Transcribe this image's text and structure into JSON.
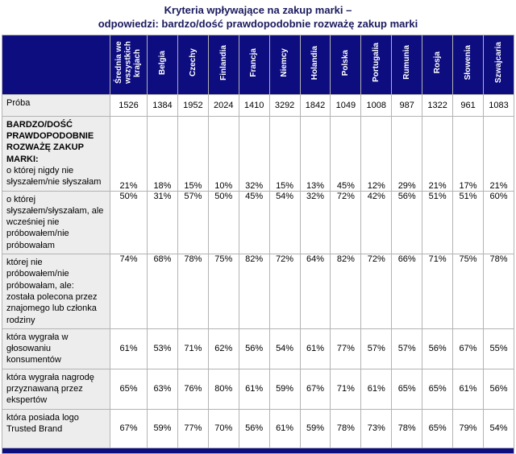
{
  "title": {
    "line1": "Kryteria wpływające na zakup marki –",
    "line2": "odpowiedzi: bardzo/dość prawdopodobnie rozważę zakup marki"
  },
  "colors": {
    "header_bg": "#0d0d80",
    "header_text": "#ffffff",
    "title_text": "#1a1a5e",
    "label_column_bg": "#ededed",
    "grid_line": "#b3b3b3"
  },
  "chart_data": {
    "type": "table",
    "title": "Kryteria wpływające na zakup marki – odpowiedzi: bardzo/dość prawdopodobnie rozważę zakup marki",
    "columns": [
      "Średnia we wszystkich krajach",
      "Belgia",
      "Czechy",
      "Finlandia",
      "Francja",
      "Niemcy",
      "Holandia",
      "Polska",
      "Portugalia",
      "Rumunia",
      "Rosja",
      "Słowenia",
      "Szwajcaria"
    ],
    "section_header": "BARDZO/DOŚĆ PRAWDOPODOBNIE ROZWAŻĘ ZAKUP MARKI:",
    "rows": [
      {
        "label": "Próba",
        "values": [
          1526,
          1384,
          1952,
          2024,
          1410,
          3292,
          1842,
          1049,
          1008,
          987,
          1322,
          961,
          1083
        ]
      },
      {
        "label": "o której nigdy nie słyszałem/nie słyszałam",
        "unit": "%",
        "section": true,
        "values": [
          21,
          18,
          15,
          10,
          32,
          15,
          13,
          45,
          12,
          29,
          21,
          17,
          21
        ]
      },
      {
        "label": "o której słyszałem/słyszałam, ale wcześniej nie próbowałem/nie próbowałam",
        "unit": "%",
        "values": [
          50,
          31,
          57,
          50,
          45,
          54,
          32,
          72,
          42,
          56,
          51,
          51,
          60
        ]
      },
      {
        "label": "której nie próbowałem/nie próbowałam, ale:\nzostała polecona przez znajomego lub członka rodziny",
        "unit": "%",
        "values": [
          74,
          68,
          78,
          75,
          82,
          72,
          64,
          82,
          72,
          66,
          71,
          75,
          78
        ]
      },
      {
        "label": "która wygrała w głosowaniu konsumentów",
        "unit": "%",
        "values": [
          61,
          53,
          71,
          62,
          56,
          54,
          61,
          77,
          57,
          57,
          56,
          67,
          55
        ]
      },
      {
        "label": "która wygrała nagrodę przyznawaną przez ekspertów",
        "unit": "%",
        "values": [
          65,
          63,
          76,
          80,
          61,
          59,
          67,
          71,
          61,
          65,
          65,
          61,
          56
        ]
      },
      {
        "label": "która posiada logo Trusted Brand",
        "unit": "%",
        "values": [
          67,
          59,
          77,
          70,
          56,
          61,
          59,
          78,
          73,
          78,
          65,
          79,
          54
        ]
      }
    ]
  }
}
